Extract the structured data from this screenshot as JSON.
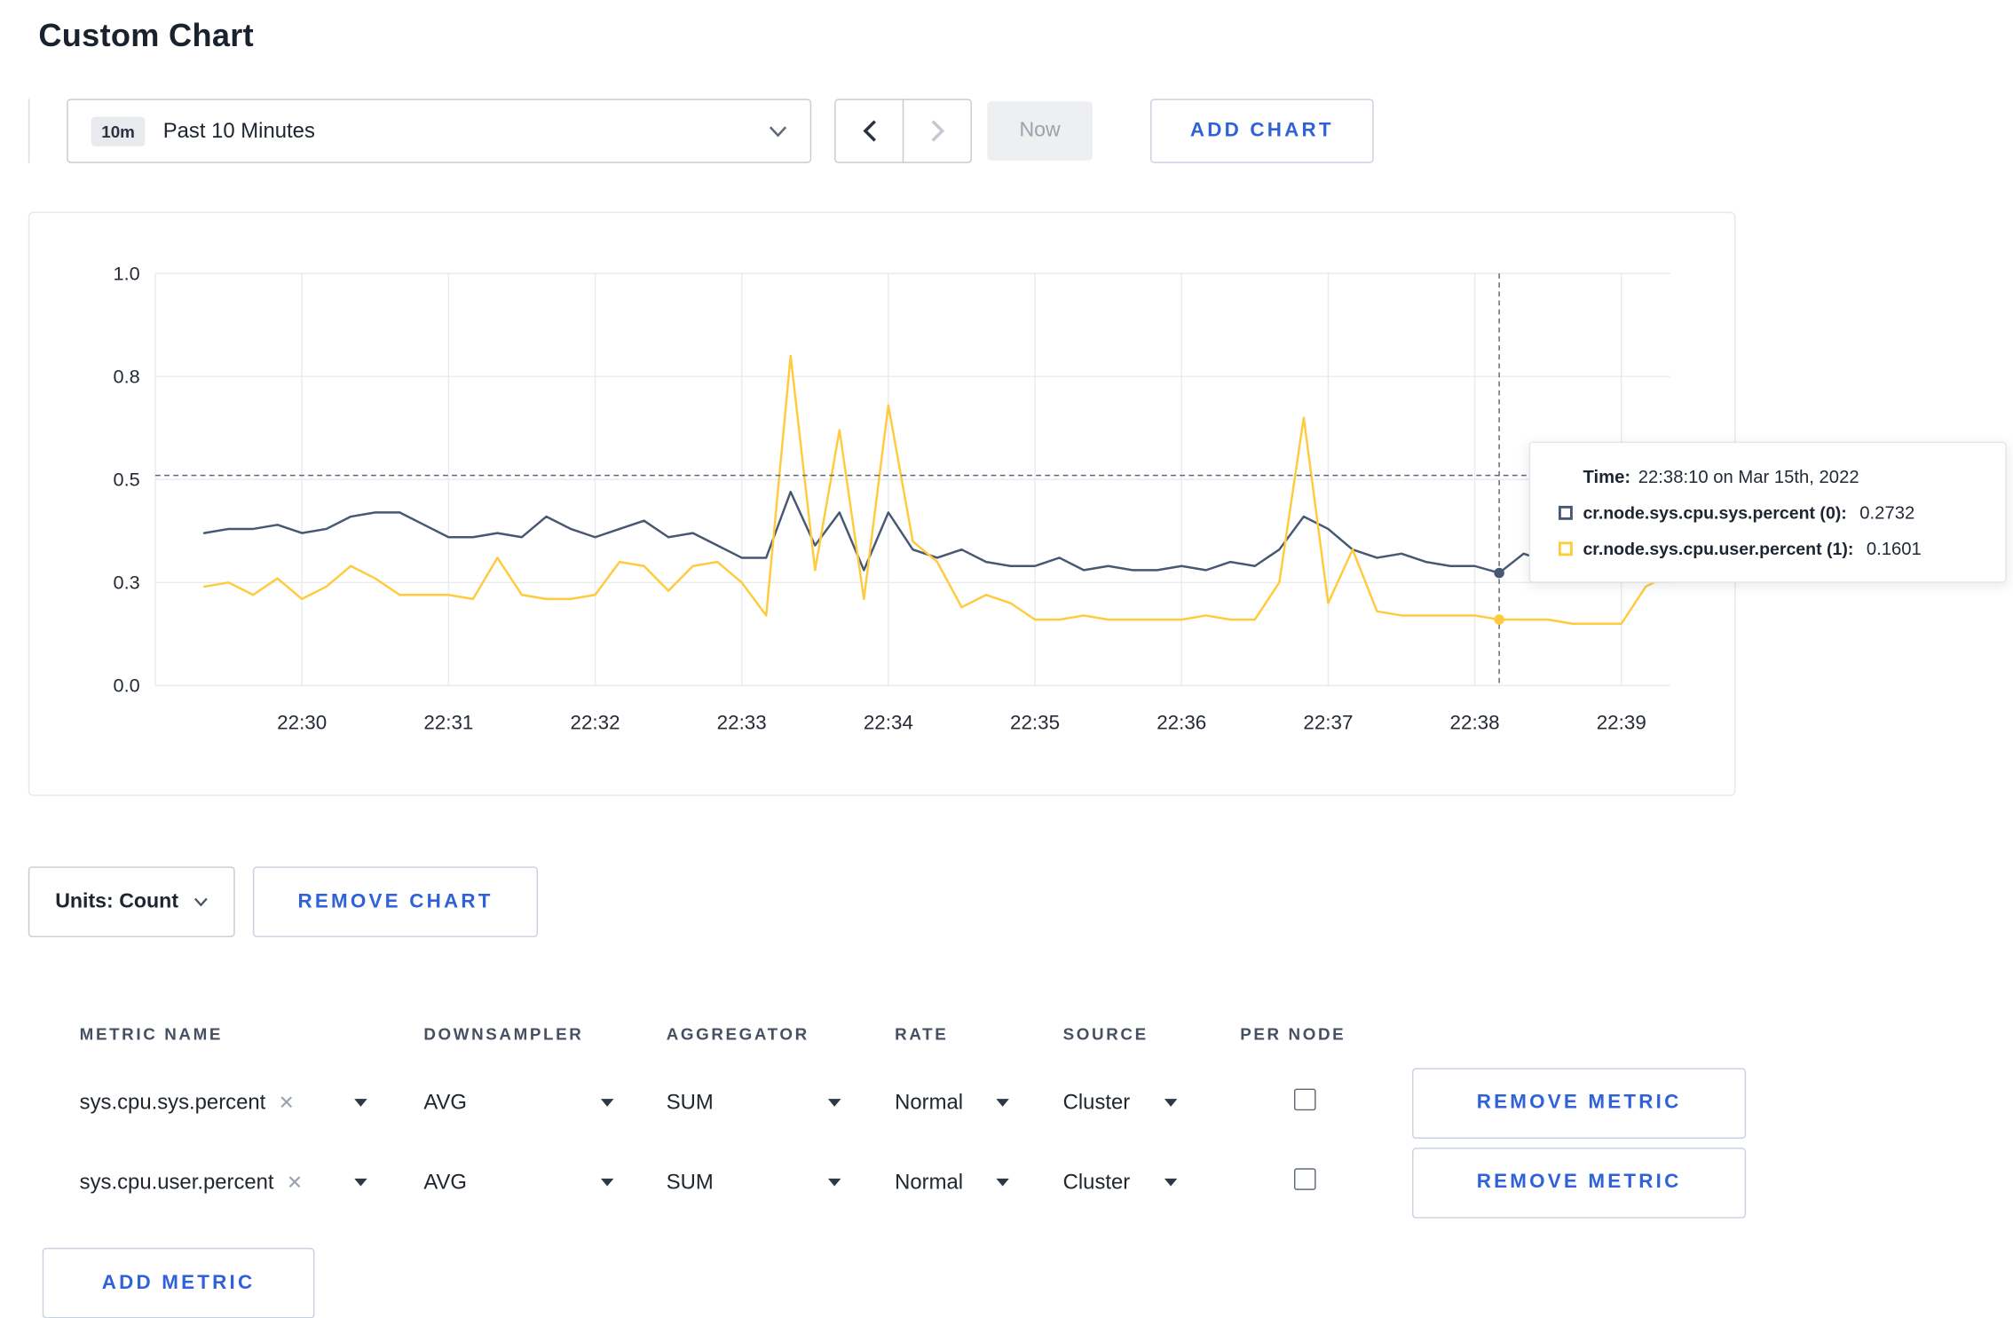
{
  "page": {
    "title": "Custom Chart"
  },
  "colors": {
    "accent_blue": "#2f62d9",
    "grid": "#e9ebf0",
    "series_sys": "#475872",
    "series_user": "#ffcb3d"
  },
  "toolbar": {
    "time_badge": "10m",
    "time_label": "Past 10 Minutes",
    "now_label": "Now",
    "add_chart_label": "ADD CHART"
  },
  "chart_controls": {
    "units_label": "Units: Count",
    "remove_chart_label": "REMOVE CHART"
  },
  "tooltip": {
    "time_label": "Time:",
    "time_value": "22:38:10 on Mar 15th, 2022",
    "series": [
      {
        "label": "cr.node.sys.cpu.sys.percent (0):",
        "value": "0.2732",
        "color": "#475872"
      },
      {
        "label": "cr.node.sys.cpu.user.percent (1):",
        "value": "0.1601",
        "color": "#ffcb3d"
      }
    ]
  },
  "chart_data": {
    "type": "line",
    "title": "",
    "xlabel": "",
    "ylabel": "",
    "ylim": [
      0,
      1
    ],
    "grid": true,
    "x_start": "22:29:20",
    "x_step_seconds": 10,
    "x_ticks": [
      "22:30",
      "22:31",
      "22:32",
      "22:33",
      "22:34",
      "22:35",
      "22:36",
      "22:37",
      "22:38",
      "22:39"
    ],
    "y_ticks": [
      {
        "v": 0,
        "label": "0.0"
      },
      {
        "v": 0.25,
        "label": "0.3"
      },
      {
        "v": 0.5,
        "label": "0.5"
      },
      {
        "v": 0.75,
        "label": "0.8"
      },
      {
        "v": 1,
        "label": "1.0"
      }
    ],
    "series": [
      {
        "name": "cr.node.sys.cpu.sys.percent",
        "color": "#475872",
        "values": [
          0.37,
          0.38,
          0.38,
          0.39,
          0.37,
          0.38,
          0.41,
          0.42,
          0.42,
          0.39,
          0.36,
          0.36,
          0.37,
          0.36,
          0.41,
          0.38,
          0.36,
          0.38,
          0.4,
          0.36,
          0.37,
          0.34,
          0.31,
          0.31,
          0.47,
          0.34,
          0.42,
          0.28,
          0.42,
          0.33,
          0.31,
          0.33,
          0.3,
          0.29,
          0.29,
          0.31,
          0.28,
          0.29,
          0.28,
          0.28,
          0.29,
          0.28,
          0.3,
          0.29,
          0.33,
          0.41,
          0.38,
          0.33,
          0.31,
          0.32,
          0.3,
          0.29,
          0.29,
          0.2732,
          0.32,
          0.3,
          0.31,
          0.3,
          0.3,
          0.3,
          0.31
        ]
      },
      {
        "name": "cr.node.sys.cpu.user.percent",
        "color": "#ffcb3d",
        "values": [
          0.24,
          0.25,
          0.22,
          0.26,
          0.21,
          0.24,
          0.29,
          0.26,
          0.22,
          0.22,
          0.22,
          0.21,
          0.31,
          0.22,
          0.21,
          0.21,
          0.22,
          0.3,
          0.29,
          0.23,
          0.29,
          0.3,
          0.25,
          0.17,
          0.8,
          0.28,
          0.62,
          0.21,
          0.68,
          0.35,
          0.3,
          0.19,
          0.22,
          0.2,
          0.16,
          0.16,
          0.17,
          0.16,
          0.16,
          0.16,
          0.16,
          0.17,
          0.16,
          0.16,
          0.25,
          0.65,
          0.2,
          0.33,
          0.18,
          0.17,
          0.17,
          0.17,
          0.17,
          0.1601,
          0.16,
          0.16,
          0.15,
          0.15,
          0.15,
          0.24,
          0.27
        ]
      }
    ],
    "hover": {
      "time": "22:38:10",
      "line_value": 0.51,
      "values": [
        0.2732,
        0.1601
      ]
    }
  },
  "metrics_table": {
    "headers": [
      "METRIC NAME",
      "DOWNSAMPLER",
      "AGGREGATOR",
      "RATE",
      "SOURCE",
      "PER NODE"
    ],
    "rows": [
      {
        "metric": "sys.cpu.sys.percent",
        "downsampler": "AVG",
        "aggregator": "SUM",
        "rate": "Normal",
        "source": "Cluster",
        "per_node": false,
        "remove_label": "REMOVE METRIC"
      },
      {
        "metric": "sys.cpu.user.percent",
        "downsampler": "AVG",
        "aggregator": "SUM",
        "rate": "Normal",
        "source": "Cluster",
        "per_node": false,
        "remove_label": "REMOVE METRIC"
      }
    ],
    "add_metric_label": "ADD METRIC"
  },
  "icons": {
    "clear": "✕"
  }
}
